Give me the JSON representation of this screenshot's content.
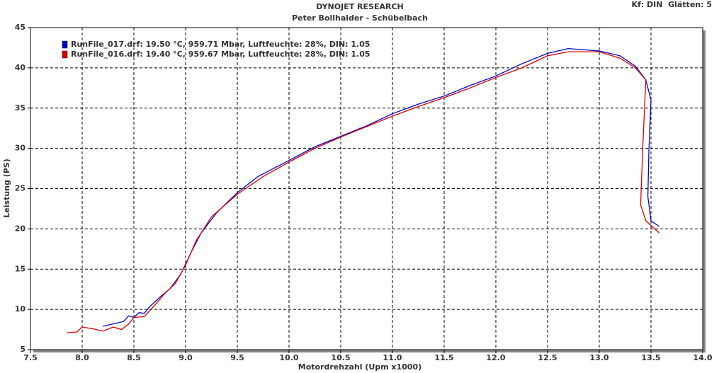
{
  "chart_data": {
    "type": "line",
    "title": "DYNOJET RESEARCH",
    "subtitle": "Peter Bollhalder - Schübelbach",
    "annotation": "Kf: DIN  Glätten: 5",
    "x_label": "Motordrehzahl (Upm x1000)",
    "y_label": "Leistung (PS)",
    "xlim": [
      7.5,
      14.0
    ],
    "ylim": [
      5,
      45
    ],
    "xticks": [
      7.5,
      {
        "value": 8,
        "label": "8.0"
      },
      8.5,
      {
        "value": 9,
        "label": "9.0"
      },
      9.5,
      {
        "value": 10,
        "label": "10.0"
      },
      10.5,
      {
        "value": 11,
        "label": "11.0"
      },
      11.5,
      {
        "value": 12,
        "label": "12.0"
      },
      12.5,
      {
        "value": 13,
        "label": "13.0"
      },
      13.5,
      {
        "value": 14,
        "label": "14.0"
      }
    ],
    "yticks": [
      5,
      10,
      15,
      20,
      25,
      30,
      35,
      40,
      45
    ],
    "grid": true,
    "legend": "top-left",
    "series": [
      {
        "name": "RunFile_017.drf: 19.50 °C, 959.71 Mbar, Luftfeuchte: 28%, DIN: 1.05",
        "color": "#0000cc",
        "x": [
          8.2,
          8.3,
          8.4,
          8.45,
          8.5,
          8.55,
          8.6,
          8.65,
          8.75,
          8.85,
          8.95,
          9.05,
          9.15,
          9.3,
          9.5,
          9.7,
          10.0,
          10.25,
          10.5,
          10.75,
          11.0,
          11.25,
          11.5,
          11.75,
          12.0,
          12.25,
          12.5,
          12.7,
          13.0,
          13.2,
          13.35,
          13.45,
          13.5,
          13.48,
          13.47,
          13.5,
          13.58
        ],
        "values": [
          7.9,
          8.2,
          8.5,
          9.2,
          9.0,
          9.6,
          9.5,
          10.3,
          11.5,
          12.6,
          14.3,
          17,
          19.5,
          22,
          24.5,
          26.5,
          28.5,
          30.2,
          31.5,
          32.8,
          34.3,
          35.5,
          36.5,
          37.8,
          39.0,
          40.5,
          41.8,
          42.4,
          42.1,
          41.5,
          40.2,
          38.5,
          36,
          30,
          24,
          21,
          20.3
        ]
      },
      {
        "name": "RunFile_016.drf: 19.40 °C, 959.67 Mbar, Luftfeuchte: 28%, DIN: 1.05",
        "color": "#dd0000",
        "x": [
          7.85,
          7.95,
          8.0,
          8.1,
          8.2,
          8.3,
          8.38,
          8.45,
          8.5,
          8.6,
          8.7,
          8.8,
          8.9,
          9.0,
          9.1,
          9.25,
          9.5,
          9.75,
          10.0,
          10.25,
          10.5,
          10.75,
          11.0,
          11.25,
          11.5,
          11.75,
          12.0,
          12.25,
          12.5,
          12.7,
          13.0,
          13.2,
          13.35,
          13.45,
          13.42,
          13.4,
          13.45,
          13.58
        ],
        "values": [
          7.1,
          7.2,
          7.8,
          7.6,
          7.3,
          7.8,
          7.5,
          8.2,
          9.0,
          9.1,
          10.5,
          12,
          13.2,
          15.5,
          18.5,
          21.5,
          24.3,
          26.5,
          28.3,
          30.0,
          31.4,
          32.7,
          34.0,
          35.2,
          36.3,
          37.5,
          38.8,
          40.0,
          41.5,
          42.0,
          42.0,
          41.2,
          40.0,
          38.5,
          30,
          23,
          21,
          19.5
        ]
      }
    ]
  }
}
